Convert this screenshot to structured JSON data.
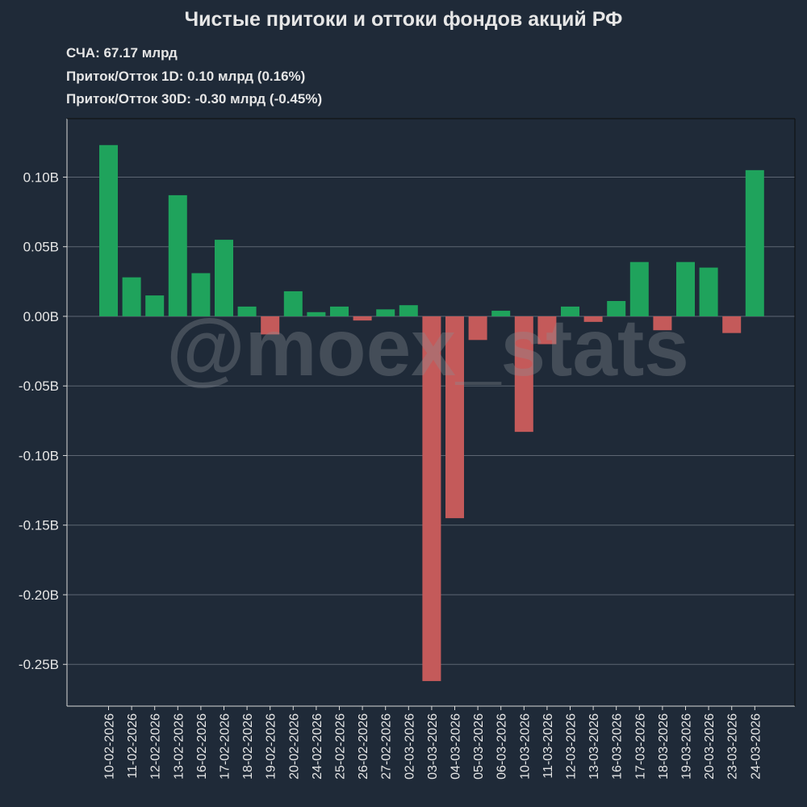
{
  "header": {
    "title": "Чистые притоки и оттоки фондов акций РФ",
    "stats": [
      "СЧА: 67.17 млрд",
      "Приток/Отток 1D: 0.10 млрд (0.16%)",
      "Приток/Отток 30D: -0.30 млрд (-0.45%)"
    ]
  },
  "watermark": "@moex_stats",
  "colors": {
    "background": "#1f2a38",
    "positive": "#1fa35c",
    "negative": "#c45a5a",
    "grid": "#5d6673",
    "axis": "#d9d9d9",
    "text": "#e6e6e6"
  },
  "chart_data": {
    "type": "bar",
    "title": "Чистые притоки и оттоки фондов акций РФ",
    "xlabel": "",
    "ylabel": "",
    "ylim": [
      -0.28,
      0.142
    ],
    "yticks": [
      0.1,
      0.05,
      0.0,
      -0.05,
      -0.1,
      -0.15,
      -0.2,
      -0.25
    ],
    "ytick_labels": [
      "0.10B",
      "0.05B",
      "0.00B",
      "-0.05B",
      "-0.10B",
      "-0.15B",
      "-0.20B",
      "-0.25B"
    ],
    "grid": true,
    "categories": [
      "10-02-2026",
      "11-02-2026",
      "12-02-2026",
      "13-02-2026",
      "16-02-2026",
      "17-02-2026",
      "18-02-2026",
      "19-02-2026",
      "20-02-2026",
      "24-02-2026",
      "25-02-2026",
      "26-02-2026",
      "27-02-2026",
      "02-03-2026",
      "03-03-2026",
      "04-03-2026",
      "05-03-2026",
      "06-03-2026",
      "10-03-2026",
      "11-03-2026",
      "12-03-2026",
      "13-03-2026",
      "16-03-2026",
      "17-03-2026",
      "18-03-2026",
      "19-03-2026",
      "20-03-2026",
      "23-03-2026",
      "24-03-2026"
    ],
    "values": [
      0.123,
      0.028,
      0.015,
      0.087,
      0.031,
      0.055,
      0.007,
      -0.013,
      0.018,
      0.003,
      0.007,
      -0.003,
      0.005,
      0.008,
      -0.262,
      -0.145,
      -0.017,
      0.004,
      -0.083,
      -0.02,
      0.007,
      -0.004,
      0.011,
      0.039,
      -0.01,
      0.039,
      0.035,
      -0.012,
      0.105
    ]
  }
}
